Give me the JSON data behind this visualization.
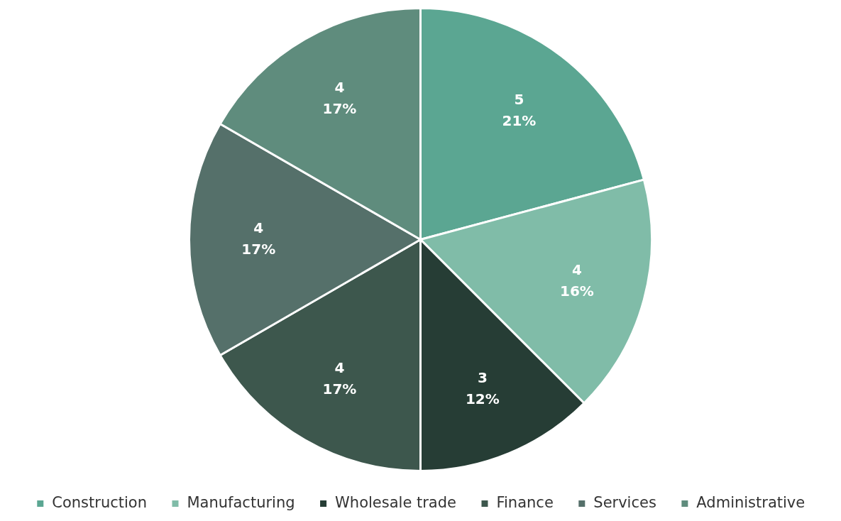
{
  "chart_data": {
    "type": "pie",
    "categories": [
      "Construction",
      "Manufacturing",
      "Wholesale trade",
      "Finance",
      "Services",
      "Administrative"
    ],
    "values": [
      5,
      4,
      3,
      4,
      4,
      4
    ],
    "colors": [
      "#5ba692",
      "#80bca8",
      "#263d35",
      "#3d574d",
      "#55706a",
      "#5f8c7d"
    ],
    "value_labels": [
      "5\n21%",
      "4\n16%",
      "3\n12%",
      "4\n17%",
      "4\n17%",
      "4\n17%"
    ],
    "legend": "bottom"
  }
}
